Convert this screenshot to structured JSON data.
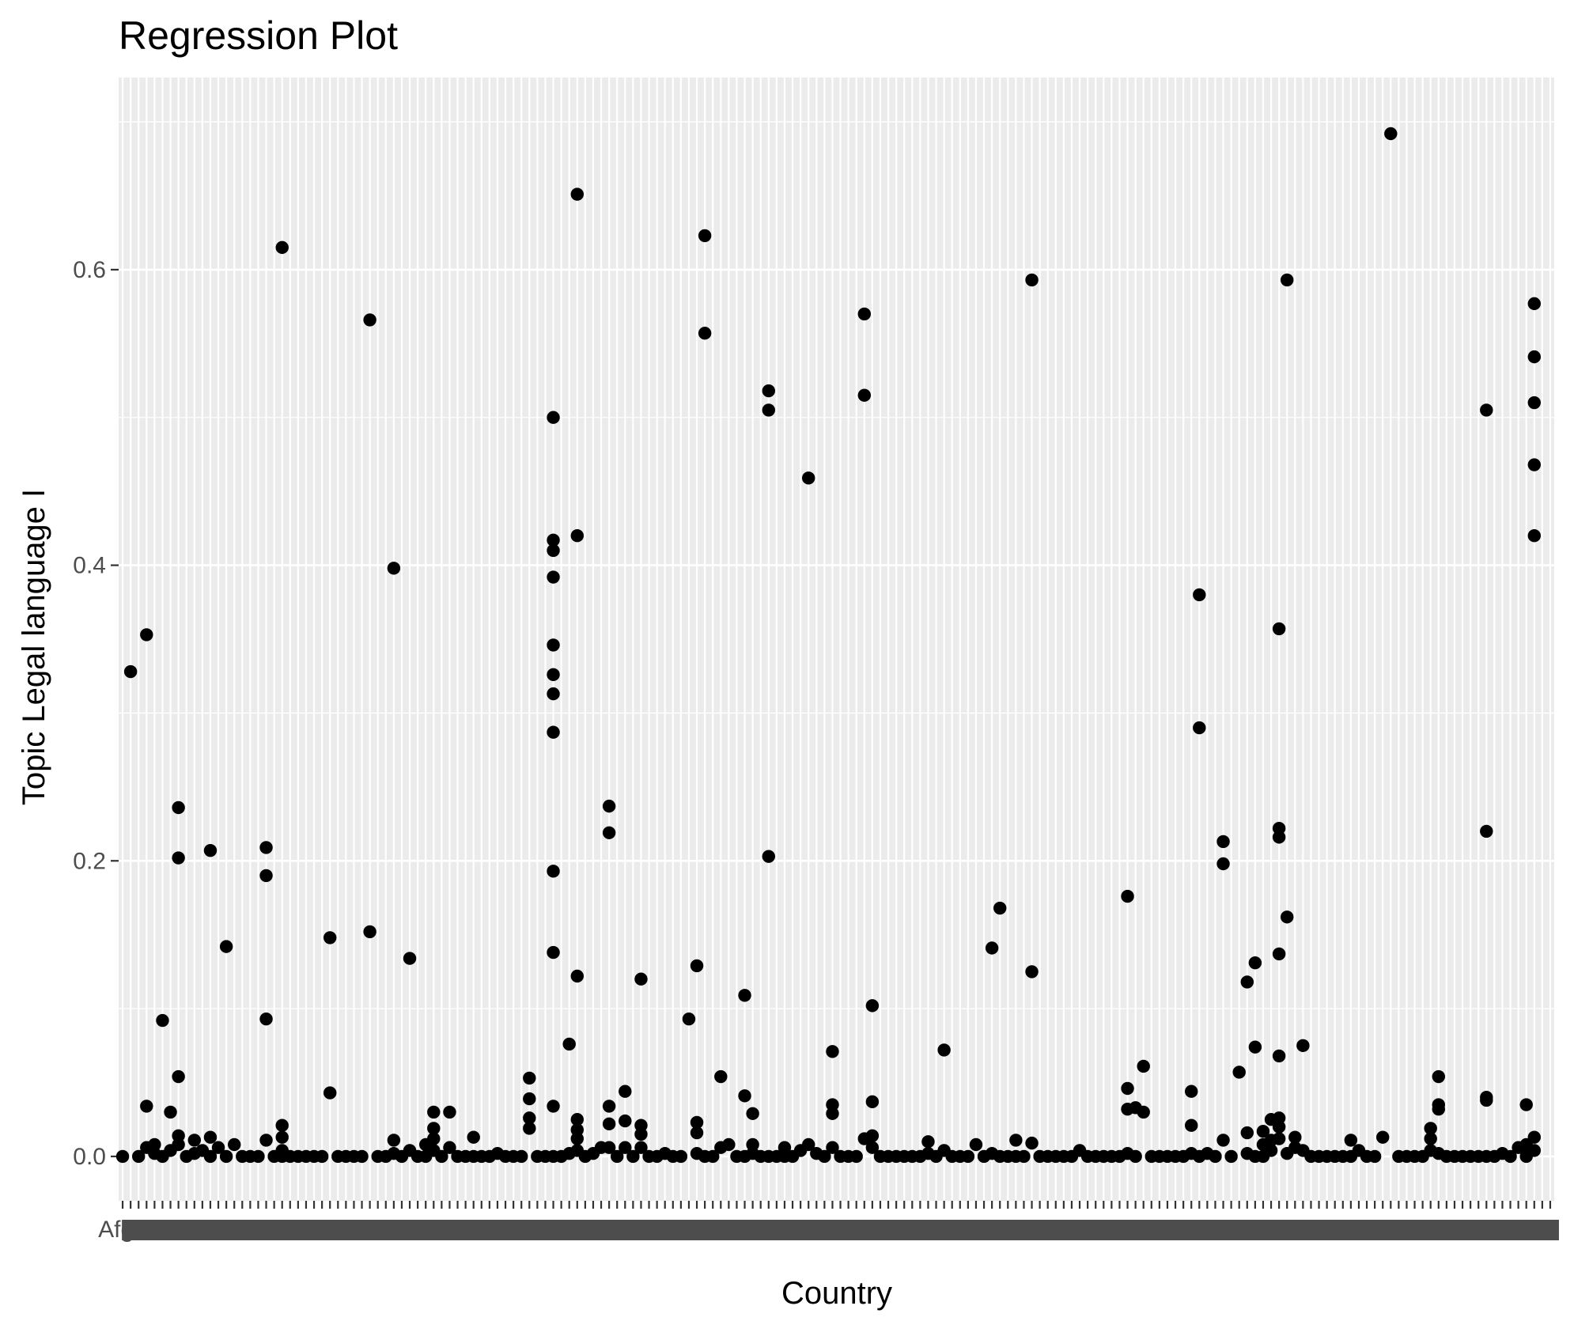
{
  "chart_data": {
    "type": "scatter",
    "title": "Regression Plot",
    "xlabel": "Country",
    "ylabel": "Topic Legal language I",
    "first_x_tick_label": "Afgh",
    "y_ticks": [
      0.0,
      0.2,
      0.4,
      0.6
    ],
    "y_tick_labels": [
      "0.0",
      "0.2",
      "0.4",
      "0.6"
    ],
    "ylim": [
      -0.03,
      0.73
    ],
    "n_categories": 180,
    "grid": true,
    "legend": "none",
    "colors": {
      "panel_background": "#ebebeb",
      "grid_line": "#ffffff",
      "point": "#000000",
      "tick_text": "#4d4d4d"
    },
    "points": [
      [
        0,
        0.0
      ],
      [
        1,
        0.328
      ],
      [
        2,
        0.0
      ],
      [
        3,
        0.353
      ],
      [
        3,
        0.034
      ],
      [
        3,
        0.006
      ],
      [
        4,
        0.008
      ],
      [
        4,
        0.002
      ],
      [
        5,
        0.0
      ],
      [
        5,
        0.092
      ],
      [
        6,
        0.03
      ],
      [
        6,
        0.004
      ],
      [
        7,
        0.236
      ],
      [
        7,
        0.202
      ],
      [
        7,
        0.054
      ],
      [
        7,
        0.014
      ],
      [
        7,
        0.008
      ],
      [
        8,
        0.0
      ],
      [
        9,
        0.011
      ],
      [
        9,
        0.002
      ],
      [
        10,
        0.004
      ],
      [
        11,
        0.207
      ],
      [
        11,
        0.013
      ],
      [
        11,
        0.0
      ],
      [
        12,
        0.006
      ],
      [
        13,
        0.142
      ],
      [
        13,
        0.0
      ],
      [
        14,
        0.008
      ],
      [
        15,
        0.0
      ],
      [
        16,
        0.0
      ],
      [
        17,
        0.0
      ],
      [
        18,
        0.209
      ],
      [
        18,
        0.19
      ],
      [
        18,
        0.093
      ],
      [
        18,
        0.011
      ],
      [
        19,
        0.0
      ],
      [
        20,
        0.0
      ],
      [
        20,
        0.615
      ],
      [
        20,
        0.021
      ],
      [
        20,
        0.013
      ],
      [
        20,
        0.004
      ],
      [
        21,
        0.0
      ],
      [
        22,
        0.0
      ],
      [
        23,
        0.0
      ],
      [
        24,
        0.0
      ],
      [
        25,
        0.0
      ],
      [
        26,
        0.148
      ],
      [
        26,
        0.043
      ],
      [
        27,
        0.0
      ],
      [
        28,
        0.0
      ],
      [
        29,
        0.0
      ],
      [
        30,
        0.0
      ],
      [
        31,
        0.566
      ],
      [
        31,
        0.152
      ],
      [
        32,
        0.0
      ],
      [
        33,
        0.0
      ],
      [
        34,
        0.398
      ],
      [
        34,
        0.011
      ],
      [
        34,
        0.002
      ],
      [
        35,
        0.0
      ],
      [
        36,
        0.134
      ],
      [
        36,
        0.004
      ],
      [
        37,
        0.0
      ],
      [
        38,
        0.008
      ],
      [
        38,
        0.0
      ],
      [
        39,
        0.03
      ],
      [
        39,
        0.019
      ],
      [
        39,
        0.012
      ],
      [
        39,
        0.004
      ],
      [
        40,
        0.0
      ],
      [
        41,
        0.03
      ],
      [
        41,
        0.006
      ],
      [
        42,
        0.0
      ],
      [
        43,
        0.0
      ],
      [
        44,
        0.013
      ],
      [
        44,
        0.0
      ],
      [
        45,
        0.0
      ],
      [
        46,
        0.0
      ],
      [
        47,
        0.002
      ],
      [
        48,
        0.0
      ],
      [
        49,
        0.0
      ],
      [
        50,
        0.0
      ],
      [
        51,
        0.053
      ],
      [
        51,
        0.039
      ],
      [
        51,
        0.026
      ],
      [
        51,
        0.019
      ],
      [
        52,
        0.0
      ],
      [
        53,
        0.0
      ],
      [
        54,
        0.5
      ],
      [
        54,
        0.417
      ],
      [
        54,
        0.41
      ],
      [
        54,
        0.392
      ],
      [
        54,
        0.346
      ],
      [
        54,
        0.326
      ],
      [
        54,
        0.313
      ],
      [
        54,
        0.287
      ],
      [
        54,
        0.193
      ],
      [
        54,
        0.138
      ],
      [
        54,
        0.034
      ],
      [
        54,
        0.0
      ],
      [
        55,
        0.0
      ],
      [
        56,
        0.076
      ],
      [
        56,
        0.002
      ],
      [
        57,
        0.651
      ],
      [
        57,
        0.42
      ],
      [
        57,
        0.122
      ],
      [
        57,
        0.025
      ],
      [
        57,
        0.018
      ],
      [
        57,
        0.012
      ],
      [
        57,
        0.004
      ],
      [
        58,
        0.0
      ],
      [
        59,
        0.002
      ],
      [
        60,
        0.006
      ],
      [
        61,
        0.237
      ],
      [
        61,
        0.219
      ],
      [
        61,
        0.034
      ],
      [
        61,
        0.022
      ],
      [
        61,
        0.006
      ],
      [
        62,
        0.0
      ],
      [
        63,
        0.044
      ],
      [
        63,
        0.024
      ],
      [
        63,
        0.006
      ],
      [
        64,
        0.0
      ],
      [
        65,
        0.12
      ],
      [
        65,
        0.021
      ],
      [
        65,
        0.015
      ],
      [
        65,
        0.006
      ],
      [
        66,
        0.0
      ],
      [
        67,
        0.0
      ],
      [
        68,
        0.002
      ],
      [
        69,
        0.0
      ],
      [
        70,
        0.0
      ],
      [
        71,
        0.093
      ],
      [
        72,
        0.129
      ],
      [
        72,
        0.023
      ],
      [
        72,
        0.016
      ],
      [
        72,
        0.002
      ],
      [
        73,
        0.623
      ],
      [
        73,
        0.557
      ],
      [
        73,
        0.0
      ],
      [
        74,
        0.0
      ],
      [
        75,
        0.054
      ],
      [
        75,
        0.006
      ],
      [
        76,
        0.008
      ],
      [
        77,
        0.0
      ],
      [
        78,
        0.109
      ],
      [
        78,
        0.041
      ],
      [
        78,
        0.0
      ],
      [
        79,
        0.029
      ],
      [
        79,
        0.008
      ],
      [
        79,
        0.002
      ],
      [
        80,
        0.0
      ],
      [
        81,
        0.518
      ],
      [
        81,
        0.505
      ],
      [
        81,
        0.203
      ],
      [
        81,
        0.0
      ],
      [
        82,
        0.0
      ],
      [
        83,
        0.006
      ],
      [
        83,
        0.0
      ],
      [
        84,
        0.0
      ],
      [
        85,
        0.004
      ],
      [
        86,
        0.459
      ],
      [
        86,
        0.008
      ],
      [
        87,
        0.002
      ],
      [
        88,
        0.0
      ],
      [
        89,
        0.071
      ],
      [
        89,
        0.035
      ],
      [
        89,
        0.029
      ],
      [
        89,
        0.006
      ],
      [
        90,
        0.0
      ],
      [
        91,
        0.0
      ],
      [
        92,
        0.0
      ],
      [
        93,
        0.57
      ],
      [
        93,
        0.515
      ],
      [
        93,
        0.012
      ],
      [
        94,
        0.102
      ],
      [
        94,
        0.037
      ],
      [
        94,
        0.014
      ],
      [
        94,
        0.006
      ],
      [
        95,
        0.0
      ],
      [
        96,
        0.0
      ],
      [
        97,
        0.0
      ],
      [
        98,
        0.0
      ],
      [
        99,
        0.0
      ],
      [
        100,
        0.0
      ],
      [
        101,
        0.01
      ],
      [
        101,
        0.002
      ],
      [
        102,
        0.0
      ],
      [
        103,
        0.072
      ],
      [
        103,
        0.004
      ],
      [
        104,
        0.0
      ],
      [
        105,
        0.0
      ],
      [
        106,
        0.0
      ],
      [
        107,
        0.008
      ],
      [
        108,
        0.0
      ],
      [
        109,
        0.141
      ],
      [
        109,
        0.002
      ],
      [
        110,
        0.168
      ],
      [
        110,
        0.0
      ],
      [
        111,
        0.0
      ],
      [
        112,
        0.011
      ],
      [
        112,
        0.0
      ],
      [
        113,
        0.0
      ],
      [
        114,
        0.593
      ],
      [
        114,
        0.125
      ],
      [
        114,
        0.009
      ],
      [
        115,
        0.0
      ],
      [
        116,
        0.0
      ],
      [
        117,
        0.0
      ],
      [
        118,
        0.0
      ],
      [
        119,
        0.0
      ],
      [
        120,
        0.004
      ],
      [
        121,
        0.0
      ],
      [
        122,
        0.0
      ],
      [
        123,
        0.0
      ],
      [
        124,
        0.0
      ],
      [
        125,
        0.0
      ],
      [
        126,
        0.176
      ],
      [
        126,
        0.046
      ],
      [
        126,
        0.032
      ],
      [
        126,
        0.002
      ],
      [
        127,
        0.033
      ],
      [
        127,
        0.0
      ],
      [
        128,
        0.061
      ],
      [
        128,
        0.03
      ],
      [
        129,
        0.0
      ],
      [
        130,
        0.0
      ],
      [
        131,
        0.0
      ],
      [
        132,
        0.0
      ],
      [
        133,
        0.0
      ],
      [
        134,
        0.044
      ],
      [
        134,
        0.021
      ],
      [
        134,
        0.002
      ],
      [
        135,
        0.38
      ],
      [
        135,
        0.29
      ],
      [
        135,
        0.0
      ],
      [
        136,
        0.002
      ],
      [
        137,
        0.0
      ],
      [
        138,
        0.213
      ],
      [
        138,
        0.198
      ],
      [
        138,
        0.011
      ],
      [
        139,
        0.0
      ],
      [
        140,
        0.057
      ],
      [
        141,
        0.118
      ],
      [
        141,
        0.016
      ],
      [
        141,
        0.002
      ],
      [
        142,
        0.131
      ],
      [
        142,
        0.074
      ],
      [
        142,
        0.0
      ],
      [
        143,
        0.017
      ],
      [
        143,
        0.008
      ],
      [
        143,
        0.0
      ],
      [
        144,
        0.025
      ],
      [
        144,
        0.011
      ],
      [
        144,
        0.004
      ],
      [
        145,
        0.357
      ],
      [
        145,
        0.222
      ],
      [
        145,
        0.216
      ],
      [
        145,
        0.137
      ],
      [
        145,
        0.068
      ],
      [
        145,
        0.026
      ],
      [
        145,
        0.02
      ],
      [
        145,
        0.012
      ],
      [
        146,
        0.593
      ],
      [
        146,
        0.162
      ],
      [
        146,
        0.002
      ],
      [
        147,
        0.013
      ],
      [
        147,
        0.006
      ],
      [
        148,
        0.075
      ],
      [
        148,
        0.004
      ],
      [
        149,
        0.0
      ],
      [
        150,
        0.0
      ],
      [
        151,
        0.0
      ],
      [
        152,
        0.0
      ],
      [
        153,
        0.0
      ],
      [
        154,
        0.011
      ],
      [
        154,
        0.0
      ],
      [
        155,
        0.004
      ],
      [
        156,
        0.0
      ],
      [
        157,
        0.0
      ],
      [
        158,
        0.013
      ],
      [
        159,
        0.692
      ],
      [
        160,
        0.0
      ],
      [
        161,
        0.0
      ],
      [
        162,
        0.0
      ],
      [
        163,
        0.0
      ],
      [
        164,
        0.019
      ],
      [
        164,
        0.012
      ],
      [
        164,
        0.004
      ],
      [
        165,
        0.054
      ],
      [
        165,
        0.035
      ],
      [
        165,
        0.032
      ],
      [
        165,
        0.002
      ],
      [
        166,
        0.0
      ],
      [
        167,
        0.0
      ],
      [
        168,
        0.0
      ],
      [
        169,
        0.0
      ],
      [
        170,
        0.0
      ],
      [
        171,
        0.505
      ],
      [
        171,
        0.22
      ],
      [
        171,
        0.04
      ],
      [
        171,
        0.038
      ],
      [
        171,
        0.0
      ],
      [
        172,
        0.0
      ],
      [
        173,
        0.002
      ],
      [
        174,
        0.0
      ],
      [
        175,
        0.006
      ],
      [
        176,
        0.035
      ],
      [
        176,
        0.008
      ],
      [
        176,
        0.0
      ],
      [
        177,
        0.577
      ],
      [
        177,
        0.541
      ],
      [
        177,
        0.51
      ],
      [
        177,
        0.468
      ],
      [
        177,
        0.42
      ],
      [
        177,
        0.013
      ],
      [
        177,
        0.004
      ]
    ]
  }
}
